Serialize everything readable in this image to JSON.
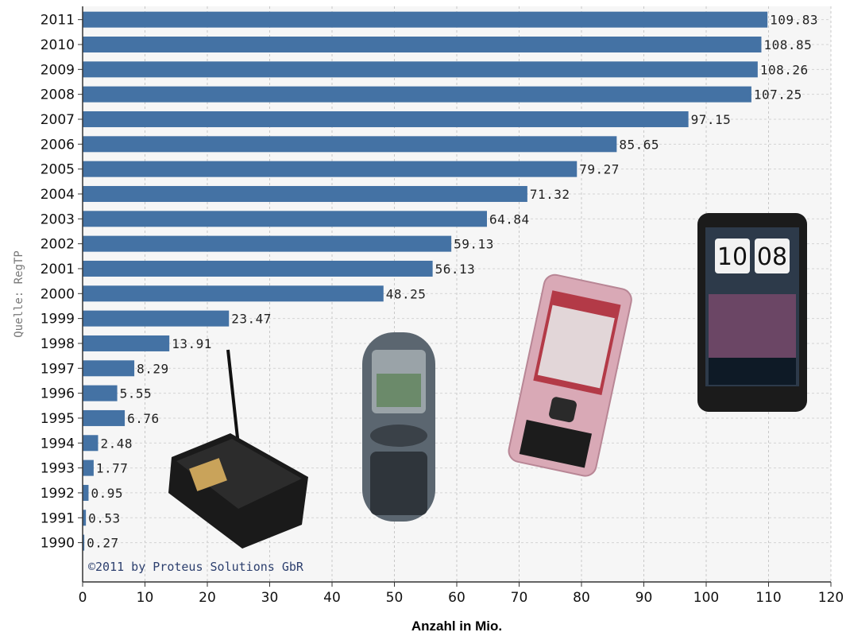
{
  "chart_data": {
    "type": "bar",
    "orientation": "horizontal",
    "categories": [
      "2011",
      "2010",
      "2009",
      "2008",
      "2007",
      "2006",
      "2005",
      "2004",
      "2003",
      "2002",
      "2001",
      "2000",
      "1999",
      "1998",
      "1997",
      "1996",
      "1995",
      "1994",
      "1993",
      "1992",
      "1991",
      "1990"
    ],
    "values": [
      109.83,
      108.85,
      108.26,
      107.25,
      97.15,
      85.65,
      79.27,
      71.32,
      64.84,
      59.13,
      56.13,
      48.25,
      23.47,
      13.91,
      8.29,
      5.55,
      6.76,
      2.48,
      1.77,
      0.95,
      0.53,
      0.27
    ],
    "value_labels": [
      "109.83",
      "108.85",
      "108.26",
      "107.25",
      "97.15",
      "85.65",
      "79.27",
      "71.32",
      "64.84",
      "59.13",
      "56.13",
      "48.25",
      "23.47",
      "13.91",
      "8.29",
      "5.55",
      "6.76",
      "2.48",
      "1.77",
      "0.95",
      "0.53",
      "0.27"
    ],
    "xlabel": "Anzahl in Mio.",
    "ylabel": "",
    "xlim": [
      0,
      120
    ],
    "xticks": [
      "0",
      "10",
      "20",
      "30",
      "40",
      "50",
      "60",
      "70",
      "80",
      "90",
      "100",
      "110",
      "120"
    ],
    "grid": true,
    "bar_color": "#4472a4",
    "source_text": "Quelle: RegTP",
    "copyright_text": "©2011 by Proteus Solutions GbR"
  }
}
